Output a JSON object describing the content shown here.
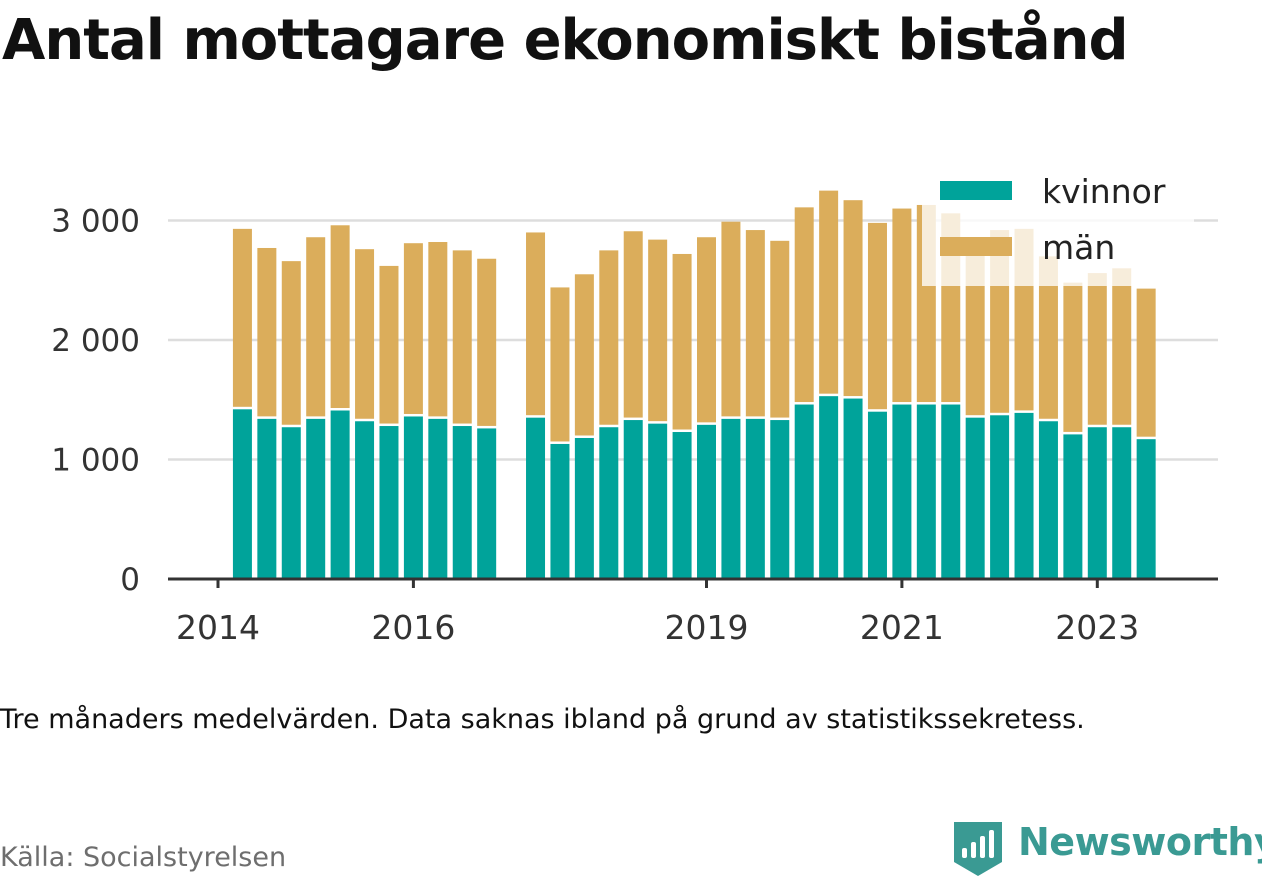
{
  "chart_data": {
    "type": "bar",
    "stacked": true,
    "title": "Antal mottagare ekonomiskt bistånd",
    "note": "Tre månaders medelvärden. Data saknas ibland på grund av statistikssekretess.",
    "source": "Källa: Socialstyrelsen",
    "brand": "Newsworthy",
    "ylim": [
      0,
      3300
    ],
    "y_ticks": [
      0,
      1000,
      2000,
      3000
    ],
    "y_tick_labels": [
      "0",
      "1 000",
      "2 000",
      "3 000"
    ],
    "x_ticks": [
      2014,
      2016,
      2019,
      2021,
      2023
    ],
    "x_tick_labels": [
      "2014",
      "2016",
      "2019",
      "2021",
      "2023"
    ],
    "grid": true,
    "legend_position": "top-right",
    "colors": {
      "kvinnor": "#00a39a",
      "man": "#dbad5b",
      "grid": "#dddddd",
      "axis": "#333333"
    },
    "x": [
      2014.25,
      2014.5,
      2014.75,
      2015,
      2015.25,
      2015.5,
      2015.75,
      2016,
      2016.25,
      2016.5,
      2016.75,
      2017.25,
      2017.5,
      2017.75,
      2018,
      2018.25,
      2018.5,
      2018.75,
      2019,
      2019.25,
      2019.5,
      2019.75,
      2020,
      2020.25,
      2020.5,
      2020.75,
      2021,
      2021.25,
      2021.5,
      2021.75,
      2022,
      2022.25,
      2022.5,
      2022.75,
      2023,
      2023.25,
      2023.5
    ],
    "series": [
      {
        "name": "kvinnor",
        "values": [
          1420,
          1340,
          1270,
          1340,
          1410,
          1320,
          1280,
          1360,
          1340,
          1280,
          1260,
          1350,
          1130,
          1180,
          1270,
          1330,
          1300,
          1230,
          1290,
          1340,
          1340,
          1330,
          1460,
          1530,
          1510,
          1400,
          1460,
          1460,
          1460,
          1350,
          1370,
          1390,
          1320,
          1210,
          1270,
          1270,
          1170
        ]
      },
      {
        "name": "män",
        "values": [
          1510,
          1430,
          1390,
          1520,
          1550,
          1440,
          1340,
          1450,
          1480,
          1470,
          1420,
          1550,
          1310,
          1370,
          1480,
          1580,
          1540,
          1490,
          1570,
          1650,
          1580,
          1500,
          1650,
          1720,
          1660,
          1580,
          1640,
          1670,
          1600,
          1380,
          1550,
          1540,
          1380,
          1270,
          1290,
          1330,
          1260
        ]
      }
    ]
  }
}
